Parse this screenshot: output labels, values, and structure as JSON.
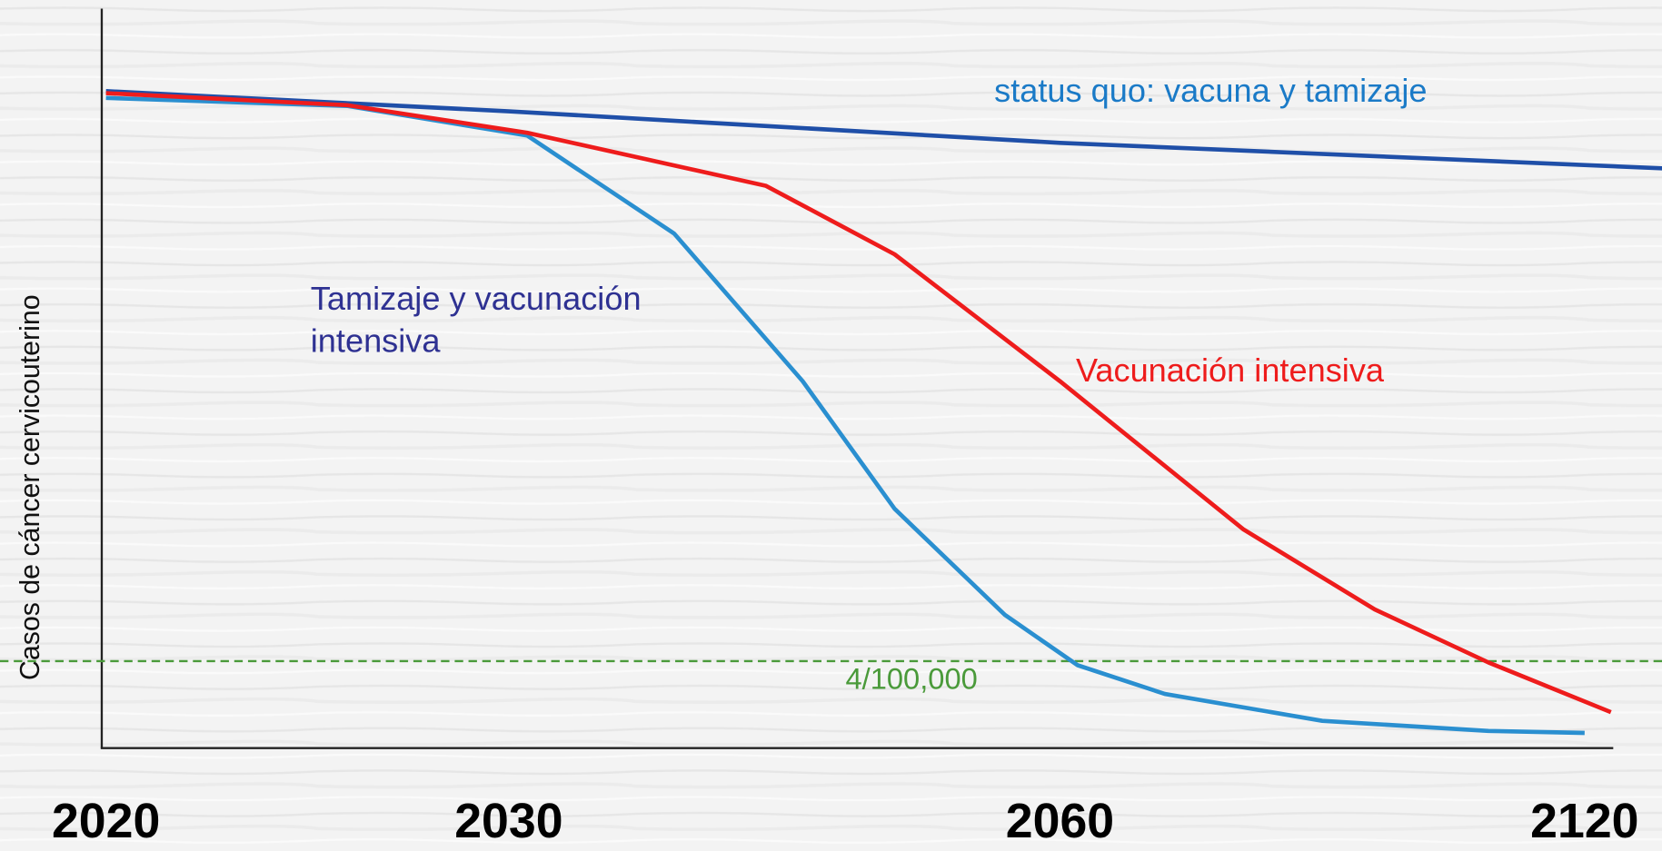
{
  "chart_data": {
    "type": "line",
    "y_label": "Casos de cáncer cervicouterino",
    "xlim": [
      2020,
      2129
    ],
    "xticks": [
      2020,
      2030,
      2060,
      2120
    ],
    "ylim": [
      0,
      110
    ],
    "series": [
      {
        "name": "status quo: vacuna y tamizaje",
        "color": "#1f4fa8",
        "label_color": "#1a7ac7",
        "x": [
          2020,
          2030,
          2060,
          2129
        ],
        "values": [
          97.7,
          94.7,
          90.0,
          86.2
        ]
      },
      {
        "name": "Tamizaje y vacunación intensiva",
        "color": "#2a8fd0",
        "label_color": "#2e3192",
        "x": [
          2020,
          2026,
          2031,
          2039,
          2046,
          2051,
          2057,
          2062,
          2072,
          2090,
          2109,
          2120
        ],
        "values": [
          96.7,
          95.5,
          91.1,
          76.5,
          54.5,
          35.5,
          19.7,
          12.2,
          7.9,
          3.9,
          2.4,
          2.1
        ]
      },
      {
        "name": "Vacunación intensiva",
        "color": "#ee1c1c",
        "label_color": "#ee1c1c",
        "x": [
          2020,
          2026,
          2031,
          2044,
          2051,
          2060,
          2081,
          2096,
          2109,
          2123
        ],
        "values": [
          97.4,
          95.6,
          91.5,
          83.6,
          73.4,
          54.5,
          32.4,
          20.5,
          12.6,
          5.2
        ]
      }
    ],
    "reference_lines": [
      {
        "value": 12.8,
        "label": "4/100,000",
        "color": "#4a9a3a",
        "style": "dashed"
      }
    ]
  }
}
